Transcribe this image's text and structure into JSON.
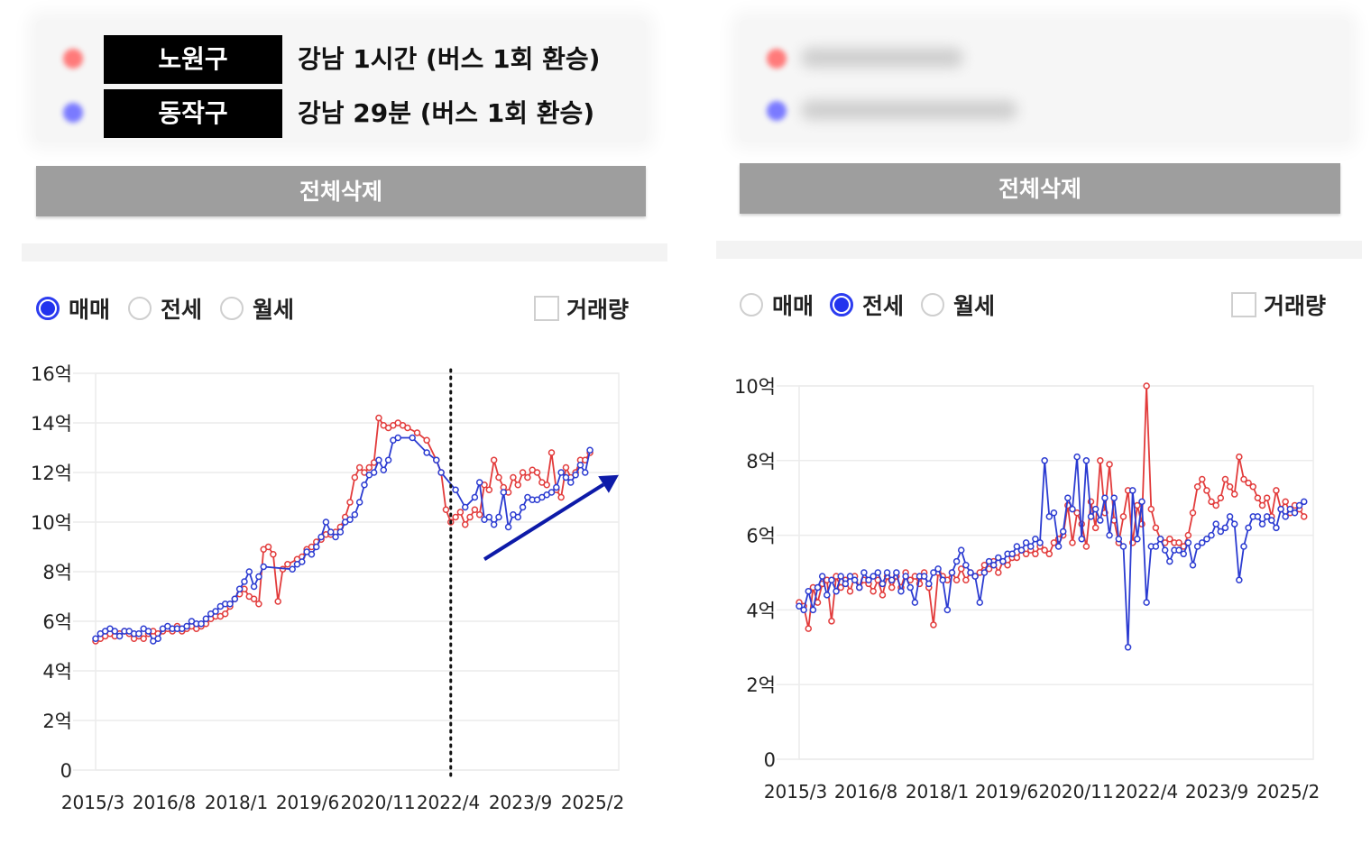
{
  "left_panel": {
    "legend": [
      {
        "tag": "노원구",
        "text": "강남 1시간 (버스 1회 환승)",
        "color": "#ff7a7a"
      },
      {
        "tag": "동작구",
        "text": "강남 29분 (버스 1회 환승)",
        "color": "#7a7aff"
      }
    ],
    "delete_label": "전체삭제",
    "radios": [
      {
        "label": "매매",
        "selected": true
      },
      {
        "label": "전세",
        "selected": false
      },
      {
        "label": "월세",
        "selected": false
      }
    ],
    "volume_label": "거래량",
    "volume_checked": false
  },
  "right_panel": {
    "legend_blurred": true,
    "delete_label": "전체삭제",
    "radios": [
      {
        "label": "매매",
        "selected": false
      },
      {
        "label": "전세",
        "selected": true
      },
      {
        "label": "월세",
        "selected": false
      }
    ],
    "volume_label": "거래량",
    "volume_checked": false
  },
  "colors": {
    "red_series": "#e23b3b",
    "blue_series": "#2b3bd1",
    "arrow": "#0d1aa8"
  },
  "chart_data": [
    {
      "type": "line",
      "yticks": [
        "0",
        "2억",
        "4억",
        "6억",
        "8억",
        "10억",
        "12억",
        "14억",
        "16억"
      ],
      "ylim": [
        0,
        16
      ],
      "xticks": [
        "2015/3",
        "2016/8",
        "2018/1",
        "2019/6",
        "2020/11",
        "2022/4",
        "2023/9",
        "2025/2"
      ],
      "xlim": [
        2015.0,
        2025.9
      ],
      "grid": true,
      "annotations": {
        "dotted_vline_x": 2022.4,
        "trend_arrow": {
          "from": [
            2023.1,
            8.5
          ],
          "to": [
            2025.9,
            11.9
          ]
        }
      },
      "series": [
        {
          "color": "red",
          "x": [
            2015.0,
            2015.1,
            2015.2,
            2015.3,
            2015.4,
            2015.5,
            2015.6,
            2015.7,
            2015.8,
            2015.9,
            2016.0,
            2016.1,
            2016.2,
            2016.3,
            2016.4,
            2016.5,
            2016.6,
            2016.7,
            2016.8,
            2016.9,
            2017.0,
            2017.1,
            2017.2,
            2017.3,
            2017.4,
            2017.5,
            2017.6,
            2017.7,
            2017.8,
            2017.9,
            2018.0,
            2018.1,
            2018.2,
            2018.3,
            2018.4,
            2018.5,
            2018.6,
            2018.7,
            2018.8,
            2018.9,
            2019.0,
            2019.2,
            2019.3,
            2019.4,
            2019.5,
            2019.6,
            2019.7,
            2019.8,
            2019.9,
            2020.0,
            2020.1,
            2020.2,
            2020.3,
            2020.4,
            2020.5,
            2020.6,
            2020.7,
            2020.8,
            2020.9,
            2021.0,
            2021.1,
            2021.2,
            2021.3,
            2021.4,
            2021.5,
            2021.7,
            2021.9,
            2022.1,
            2022.2,
            2022.3,
            2022.4,
            2022.5,
            2022.6,
            2022.7,
            2022.8,
            2022.9,
            2023.0,
            2023.1,
            2023.2,
            2023.3,
            2023.4,
            2023.5,
            2023.6,
            2023.7,
            2023.8,
            2023.9,
            2024.0,
            2024.1,
            2024.2,
            2024.3,
            2024.4,
            2024.5,
            2024.6,
            2024.7,
            2024.8,
            2024.9,
            2025.0,
            2025.1,
            2025.2,
            2025.3
          ],
          "y": [
            5.2,
            5.3,
            5.4,
            5.5,
            5.4,
            5.5,
            5.6,
            5.5,
            5.3,
            5.4,
            5.3,
            5.5,
            5.6,
            5.5,
            5.6,
            5.7,
            5.6,
            5.8,
            5.6,
            5.7,
            5.8,
            5.7,
            5.8,
            5.9,
            6.1,
            6.2,
            6.2,
            6.3,
            6.6,
            6.9,
            7.1,
            7.3,
            7.0,
            6.9,
            6.7,
            8.9,
            9.0,
            8.7,
            6.8,
            8.1,
            8.3,
            8.5,
            8.6,
            8.9,
            9.0,
            9.2,
            9.3,
            9.5,
            9.5,
            9.6,
            9.8,
            10.2,
            10.8,
            11.8,
            12.2,
            12.0,
            12.2,
            12.4,
            14.2,
            13.9,
            13.8,
            13.9,
            14.0,
            13.9,
            13.8,
            13.6,
            13.3,
            12.5,
            12.0,
            10.5,
            10.0,
            10.2,
            10.4,
            9.9,
            10.2,
            10.5,
            10.3,
            11.5,
            11.3,
            12.5,
            11.8,
            11.4,
            11.2,
            11.8,
            11.5,
            12.0,
            11.8,
            12.1,
            12.0,
            11.6,
            11.5,
            12.8,
            11.3,
            11.0,
            12.2,
            11.8,
            12.0,
            12.5,
            12.5,
            12.8
          ]
        },
        {
          "color": "blue",
          "x": [
            2015.0,
            2015.1,
            2015.2,
            2015.3,
            2015.4,
            2015.5,
            2015.6,
            2015.7,
            2015.8,
            2015.9,
            2016.0,
            2016.1,
            2016.2,
            2016.3,
            2016.4,
            2016.5,
            2016.6,
            2016.7,
            2016.8,
            2016.9,
            2017.0,
            2017.1,
            2017.2,
            2017.3,
            2017.4,
            2017.5,
            2017.6,
            2017.7,
            2017.8,
            2017.9,
            2018.0,
            2018.1,
            2018.2,
            2018.3,
            2018.4,
            2018.5,
            2019.1,
            2019.2,
            2019.3,
            2019.4,
            2019.5,
            2019.6,
            2019.7,
            2019.8,
            2019.9,
            2020.0,
            2020.1,
            2020.2,
            2020.3,
            2020.4,
            2020.5,
            2020.6,
            2020.7,
            2020.8,
            2020.9,
            2021.0,
            2021.1,
            2021.2,
            2021.3,
            2021.6,
            2021.9,
            2022.1,
            2022.2,
            2022.5,
            2022.7,
            2022.9,
            2023.0,
            2023.1,
            2023.2,
            2023.3,
            2023.4,
            2023.5,
            2023.6,
            2023.7,
            2023.8,
            2023.9,
            2024.0,
            2024.1,
            2024.2,
            2024.3,
            2024.4,
            2024.5,
            2024.6,
            2024.7,
            2024.8,
            2024.9,
            2025.0,
            2025.1,
            2025.2,
            2025.3
          ],
          "y": [
            5.3,
            5.5,
            5.6,
            5.7,
            5.6,
            5.4,
            5.6,
            5.6,
            5.5,
            5.5,
            5.7,
            5.6,
            5.2,
            5.3,
            5.7,
            5.8,
            5.7,
            5.7,
            5.7,
            5.8,
            6.0,
            5.9,
            5.9,
            6.1,
            6.3,
            6.4,
            6.6,
            6.7,
            6.7,
            6.9,
            7.3,
            7.6,
            8.0,
            7.4,
            7.8,
            8.2,
            8.1,
            8.3,
            8.4,
            8.8,
            8.7,
            9.0,
            9.4,
            10.0,
            9.6,
            9.4,
            9.6,
            10.0,
            10.1,
            10.3,
            10.8,
            11.5,
            11.9,
            12.0,
            12.5,
            12.1,
            12.5,
            13.3,
            13.4,
            13.4,
            12.8,
            12.5,
            12.0,
            11.3,
            10.6,
            11.0,
            11.6,
            10.1,
            10.2,
            9.9,
            10.2,
            11.2,
            9.8,
            10.3,
            10.2,
            10.6,
            11.0,
            10.9,
            10.9,
            11.0,
            11.1,
            11.2,
            11.4,
            12.0,
            11.8,
            11.6,
            11.9,
            12.3,
            12.0,
            12.9
          ]
        }
      ]
    },
    {
      "type": "line",
      "yticks": [
        "0",
        "2억",
        "4억",
        "6억",
        "8억",
        "10억"
      ],
      "ylim": [
        0,
        10
      ],
      "xticks": [
        "2015/3",
        "2016/8",
        "2018/1",
        "2019/6",
        "2020/11",
        "2022/4",
        "2023/9",
        "2025/2"
      ],
      "xlim": [
        2015.0,
        2026.1
      ],
      "grid": true,
      "series": [
        {
          "color": "red",
          "x": [
            2015.0,
            2015.1,
            2015.2,
            2015.3,
            2015.4,
            2015.5,
            2015.6,
            2015.7,
            2015.8,
            2015.9,
            2016.0,
            2016.1,
            2016.2,
            2016.3,
            2016.4,
            2016.5,
            2016.6,
            2016.7,
            2016.8,
            2016.9,
            2017.0,
            2017.1,
            2017.2,
            2017.3,
            2017.4,
            2017.5,
            2017.6,
            2017.7,
            2017.8,
            2017.9,
            2018.0,
            2018.1,
            2018.2,
            2018.3,
            2018.4,
            2018.5,
            2018.6,
            2018.7,
            2018.8,
            2018.9,
            2019.0,
            2019.1,
            2019.2,
            2019.3,
            2019.4,
            2019.5,
            2019.6,
            2019.7,
            2019.8,
            2019.9,
            2020.0,
            2020.1,
            2020.2,
            2020.3,
            2020.4,
            2020.5,
            2020.6,
            2020.7,
            2020.8,
            2020.9,
            2021.0,
            2021.1,
            2021.2,
            2021.3,
            2021.4,
            2021.5,
            2021.6,
            2021.7,
            2021.8,
            2021.9,
            2022.0,
            2022.1,
            2022.2,
            2022.3,
            2022.4,
            2022.5,
            2022.6,
            2022.7,
            2022.8,
            2022.9,
            2023.0,
            2023.1,
            2023.2,
            2023.3,
            2023.4,
            2023.5,
            2023.6,
            2023.7,
            2023.8,
            2023.9,
            2024.0,
            2024.1,
            2024.2,
            2024.3,
            2024.4,
            2024.5,
            2024.6,
            2024.7,
            2024.8,
            2024.9,
            2025.0,
            2025.1,
            2025.2,
            2025.3,
            2025.4,
            2025.5,
            2025.6,
            2025.7,
            2025.8,
            2025.9
          ],
          "y": [
            4.2,
            4.1,
            3.5,
            4.6,
            4.2,
            4.7,
            4.8,
            3.7,
            4.9,
            4.6,
            4.8,
            4.5,
            4.9,
            4.6,
            4.8,
            4.7,
            4.5,
            4.8,
            4.4,
            4.9,
            4.6,
            4.9,
            4.6,
            5.0,
            4.8,
            4.9,
            4.7,
            5.0,
            4.6,
            3.6,
            5.0,
            4.9,
            4.8,
            5.0,
            4.8,
            5.1,
            4.8,
            5.0,
            4.9,
            5.0,
            5.2,
            5.1,
            5.3,
            5.0,
            5.3,
            5.2,
            5.4,
            5.4,
            5.6,
            5.5,
            5.6,
            5.5,
            5.7,
            5.6,
            5.5,
            5.8,
            5.9,
            6.0,
            6.8,
            5.8,
            6.6,
            6.3,
            5.7,
            6.9,
            6.2,
            8.0,
            6.6,
            7.9,
            6.4,
            5.8,
            6.5,
            7.2,
            5.8,
            6.8,
            6.3,
            10.0,
            6.7,
            6.2,
            5.9,
            5.8,
            5.9,
            5.8,
            5.8,
            5.7,
            6.0,
            6.6,
            7.3,
            7.5,
            7.2,
            6.9,
            6.8,
            7.0,
            7.5,
            7.3,
            7.1,
            8.1,
            7.5,
            7.4,
            7.3,
            7.0,
            6.8,
            7.0,
            6.5,
            7.2,
            6.7,
            6.9,
            6.6,
            6.8,
            6.7,
            6.5
          ]
        },
        {
          "color": "blue",
          "x": [
            2015.0,
            2015.1,
            2015.2,
            2015.3,
            2015.4,
            2015.5,
            2015.6,
            2015.7,
            2015.8,
            2015.9,
            2016.0,
            2016.1,
            2016.2,
            2016.3,
            2016.4,
            2016.5,
            2016.6,
            2016.7,
            2016.8,
            2016.9,
            2017.0,
            2017.1,
            2017.2,
            2017.3,
            2017.4,
            2017.5,
            2017.6,
            2017.7,
            2017.8,
            2017.9,
            2018.0,
            2018.1,
            2018.2,
            2018.3,
            2018.4,
            2018.5,
            2018.6,
            2018.7,
            2018.8,
            2018.9,
            2019.0,
            2019.1,
            2019.2,
            2019.3,
            2019.4,
            2019.5,
            2019.6,
            2019.7,
            2019.8,
            2019.9,
            2020.0,
            2020.1,
            2020.2,
            2020.3,
            2020.4,
            2020.5,
            2020.6,
            2020.7,
            2020.8,
            2020.9,
            2021.0,
            2021.1,
            2021.2,
            2021.3,
            2021.4,
            2021.5,
            2021.6,
            2021.7,
            2021.8,
            2021.9,
            2022.0,
            2022.1,
            2022.2,
            2022.3,
            2022.4,
            2022.5,
            2022.6,
            2022.7,
            2022.8,
            2022.9,
            2023.0,
            2023.1,
            2023.2,
            2023.3,
            2023.4,
            2023.5,
            2023.6,
            2023.7,
            2023.8,
            2023.9,
            2024.0,
            2024.1,
            2024.2,
            2024.3,
            2024.4,
            2024.5,
            2024.6,
            2024.7,
            2024.8,
            2024.9,
            2025.0,
            2025.1,
            2025.2,
            2025.3,
            2025.4,
            2025.5,
            2025.6,
            2025.7,
            2025.8,
            2025.9
          ],
          "y": [
            4.1,
            4.0,
            4.5,
            4.0,
            4.6,
            4.9,
            4.4,
            4.8,
            4.5,
            4.9,
            4.7,
            4.9,
            4.8,
            4.6,
            5.0,
            4.8,
            4.9,
            5.0,
            4.7,
            5.0,
            4.8,
            5.0,
            4.5,
            4.9,
            4.6,
            4.2,
            4.9,
            4.9,
            4.7,
            5.0,
            5.1,
            4.8,
            4.0,
            5.0,
            5.3,
            5.6,
            5.2,
            5.0,
            4.9,
            4.2,
            5.0,
            5.3,
            5.2,
            5.4,
            5.3,
            5.5,
            5.5,
            5.7,
            5.6,
            5.8,
            5.7,
            5.9,
            5.8,
            8.0,
            6.5,
            6.6,
            5.7,
            6.1,
            7.0,
            6.7,
            8.1,
            5.9,
            8.0,
            6.5,
            6.7,
            6.4,
            7.0,
            6.0,
            7.0,
            5.9,
            5.7,
            3.0,
            7.2,
            5.9,
            6.9,
            4.2,
            5.7,
            5.7,
            5.9,
            5.6,
            5.3,
            5.6,
            5.6,
            5.5,
            5.8,
            5.2,
            5.7,
            5.8,
            5.9,
            6.0,
            6.3,
            6.1,
            6.2,
            6.5,
            6.3,
            4.8,
            5.7,
            6.2,
            6.5,
            6.5,
            6.3,
            6.5,
            6.4,
            6.2,
            6.7,
            6.5,
            6.7,
            6.6,
            6.8,
            6.9
          ]
        }
      ]
    }
  ]
}
